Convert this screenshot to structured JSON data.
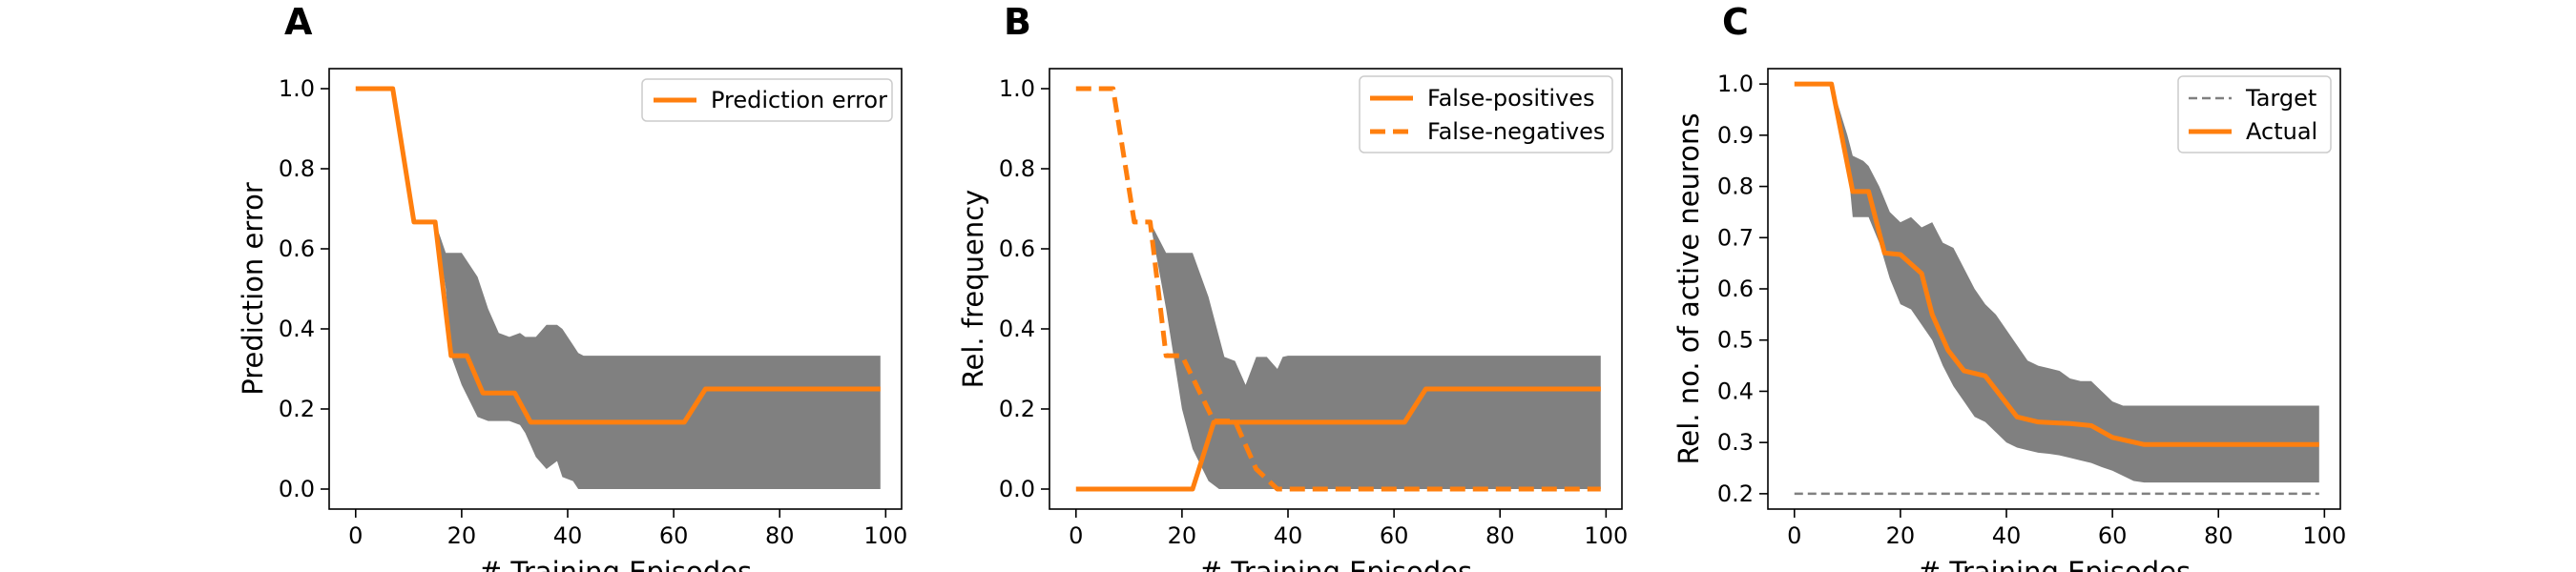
{
  "colors": {
    "actual": "#ff7f0e",
    "target": "#808080",
    "band": "#808080"
  },
  "chart_data": [
    {
      "panel": "A",
      "type": "line",
      "xlabel": "# Training Episodes",
      "ylabel": "Prediction error",
      "xlim": [
        -5,
        103
      ],
      "ylim": [
        -0.05,
        1.05
      ],
      "xticks": [
        0,
        20,
        40,
        60,
        80,
        100
      ],
      "yticks": [
        0.0,
        0.2,
        0.4,
        0.6,
        0.8,
        1.0
      ],
      "ytick_decimals": 1,
      "legend_position": "top-right",
      "series": [
        {
          "name": "Prediction error",
          "style": "solid",
          "x": [
            0,
            7,
            11,
            15,
            18,
            21,
            24,
            30,
            33,
            60,
            62,
            66,
            99
          ],
          "y": [
            1.0,
            1.0,
            0.667,
            0.667,
            0.333,
            0.333,
            0.24,
            0.24,
            0.167,
            0.167,
            0.167,
            0.25,
            0.25
          ]
        }
      ],
      "band": {
        "x": [
          15,
          17,
          18,
          20,
          23,
          25,
          27,
          29,
          31,
          32,
          34,
          36,
          38,
          39,
          41,
          42,
          43,
          60,
          99
        ],
        "upper": [
          0.667,
          0.59,
          0.59,
          0.59,
          0.53,
          0.45,
          0.39,
          0.38,
          0.39,
          0.38,
          0.38,
          0.41,
          0.41,
          0.4,
          0.36,
          0.34,
          0.333,
          0.333,
          0.333
        ],
        "lower": [
          0.667,
          0.5,
          0.333,
          0.26,
          0.18,
          0.17,
          0.17,
          0.17,
          0.16,
          0.14,
          0.08,
          0.05,
          0.07,
          0.03,
          0.02,
          0.0,
          0.0,
          0.0,
          0.0
        ]
      }
    },
    {
      "panel": "B",
      "type": "line",
      "xlabel": "# Training Episodes",
      "ylabel": "Rel. frequency",
      "xlim": [
        -5,
        103
      ],
      "ylim": [
        -0.05,
        1.05
      ],
      "xticks": [
        0,
        20,
        40,
        60,
        80,
        100
      ],
      "yticks": [
        0.0,
        0.2,
        0.4,
        0.6,
        0.8,
        1.0
      ],
      "ytick_decimals": 1,
      "legend_position": "top-right",
      "series": [
        {
          "name": "False-positives",
          "style": "solid",
          "x": [
            0,
            22,
            26,
            30,
            62,
            66,
            99
          ],
          "y": [
            0.0,
            0.0,
            0.167,
            0.167,
            0.167,
            0.25,
            0.25
          ]
        },
        {
          "name": "False-negatives",
          "style": "dashed",
          "x": [
            0,
            7,
            11,
            14,
            17,
            20,
            26,
            30,
            34,
            38,
            40,
            99
          ],
          "y": [
            1.0,
            1.0,
            0.667,
            0.667,
            0.333,
            0.333,
            0.17,
            0.17,
            0.05,
            0.0,
            0.0,
            0.0
          ]
        }
      ],
      "band": {
        "x": [
          14,
          17,
          20,
          22,
          25,
          27,
          28,
          30,
          32,
          34,
          36,
          38,
          39,
          40,
          60,
          99
        ],
        "upper": [
          0.667,
          0.59,
          0.59,
          0.59,
          0.48,
          0.38,
          0.33,
          0.32,
          0.26,
          0.33,
          0.33,
          0.3,
          0.33,
          0.333,
          0.333,
          0.333
        ],
        "lower": [
          0.667,
          0.45,
          0.2,
          0.1,
          0.02,
          0.0,
          0.0,
          0.0,
          0.0,
          0.0,
          0.0,
          0.0,
          0.0,
          0.0,
          0.0,
          0.0
        ]
      }
    },
    {
      "panel": "C",
      "type": "line",
      "xlabel": "# Training Episodes",
      "ylabel": "Rel. no. of active neurons",
      "xlim": [
        -5,
        103
      ],
      "ylim": [
        0.17,
        1.03
      ],
      "xticks": [
        0,
        20,
        40,
        60,
        80,
        100
      ],
      "yticks": [
        0.2,
        0.3,
        0.4,
        0.5,
        0.6,
        0.7,
        0.8,
        0.9,
        1.0
      ],
      "ytick_decimals": 1,
      "legend_position": "top-right",
      "series": [
        {
          "name": "Target",
          "style": "dashed-thin",
          "x": [
            0,
            99
          ],
          "y": [
            0.2,
            0.2
          ]
        },
        {
          "name": "Actual",
          "style": "solid",
          "x": [
            0,
            7,
            11,
            14,
            17,
            20,
            24,
            26,
            29,
            32,
            36,
            39,
            42,
            46,
            52,
            56,
            60,
            63,
            66,
            70,
            99
          ],
          "y": [
            1.0,
            1.0,
            0.79,
            0.79,
            0.67,
            0.667,
            0.63,
            0.55,
            0.48,
            0.44,
            0.43,
            0.39,
            0.35,
            0.34,
            0.337,
            0.333,
            0.31,
            0.303,
            0.296,
            0.296,
            0.296
          ]
        }
      ],
      "band": {
        "x": [
          0,
          7,
          10,
          11,
          13,
          14,
          16,
          18,
          20,
          22,
          24,
          26,
          28,
          30,
          32,
          34,
          36,
          38,
          40,
          42,
          44,
          46,
          48,
          50,
          52,
          54,
          56,
          58,
          60,
          62,
          64,
          66,
          99
        ],
        "upper": [
          1.0,
          1.0,
          0.9,
          0.86,
          0.85,
          0.84,
          0.8,
          0.75,
          0.73,
          0.74,
          0.72,
          0.73,
          0.69,
          0.68,
          0.64,
          0.6,
          0.57,
          0.55,
          0.52,
          0.49,
          0.46,
          0.45,
          0.445,
          0.44,
          0.425,
          0.42,
          0.42,
          0.4,
          0.38,
          0.372,
          0.372,
          0.372,
          0.372
        ],
        "lower": [
          1.0,
          1.0,
          0.85,
          0.74,
          0.74,
          0.74,
          0.69,
          0.62,
          0.57,
          0.56,
          0.53,
          0.5,
          0.45,
          0.41,
          0.38,
          0.35,
          0.34,
          0.32,
          0.3,
          0.29,
          0.285,
          0.28,
          0.278,
          0.275,
          0.27,
          0.265,
          0.26,
          0.252,
          0.245,
          0.235,
          0.225,
          0.222,
          0.222
        ]
      }
    }
  ]
}
